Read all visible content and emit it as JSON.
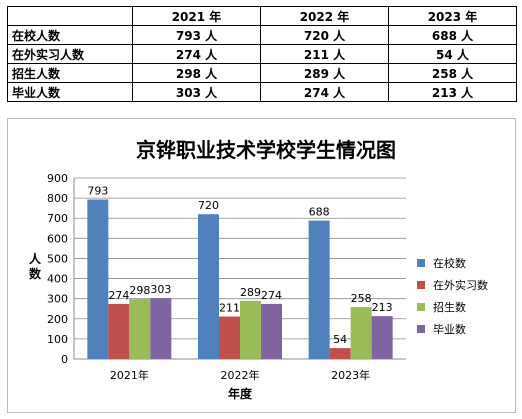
{
  "table": {
    "headers": [
      "",
      "2021 年",
      "2022 年",
      "2023 年"
    ],
    "rows": [
      {
        "label": "在校人数",
        "cells": [
          "793 人",
          "720 人",
          "688 人"
        ]
      },
      {
        "label": "在外实习人数",
        "cells": [
          "274 人",
          "211 人",
          "54 人"
        ]
      },
      {
        "label": "招生人数",
        "cells": [
          "298 人",
          "289 人",
          "258 人"
        ]
      },
      {
        "label": "毕业人数",
        "cells": [
          "303 人",
          "274 人",
          "213 人"
        ]
      }
    ]
  },
  "chart_data": {
    "type": "bar",
    "title": "京铧职业技术学校学生情况图",
    "xlabel": "年度",
    "ylabel": "人数",
    "ylim": [
      0,
      900
    ],
    "yticks": [
      0,
      100,
      200,
      300,
      400,
      500,
      600,
      700,
      800,
      900
    ],
    "grid": true,
    "legend_position": "right",
    "categories": [
      "2021年",
      "2022年",
      "2023年"
    ],
    "series": [
      {
        "name": "在校数",
        "color": "#4f81bd",
        "values": [
          793,
          720,
          688
        ]
      },
      {
        "name": "在外实习数",
        "color": "#c0504d",
        "values": [
          274,
          211,
          54
        ]
      },
      {
        "name": "招生数",
        "color": "#9bbb59",
        "values": [
          298,
          289,
          258
        ]
      },
      {
        "name": "毕业数",
        "color": "#8064a2",
        "values": [
          303,
          274,
          213
        ]
      }
    ]
  }
}
